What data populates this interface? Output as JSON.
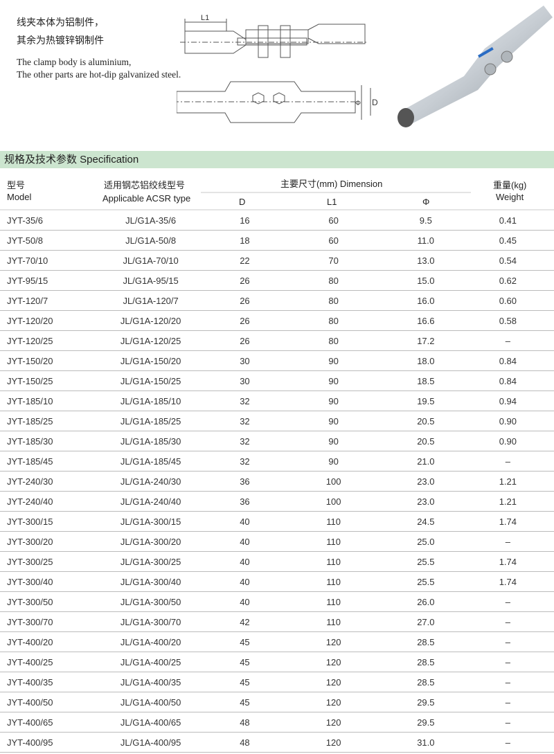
{
  "intro": {
    "zh_line1": "线夹本体为铝制件，",
    "zh_line2": "其余为热镀锌钢制件",
    "en_line1": "The clamp body is aluminium,",
    "en_line2": "The other parts are hot-dip galvanized steel."
  },
  "drawing": {
    "label_l1": "L1",
    "label_phi": "Φ",
    "label_d": "D"
  },
  "section": {
    "title": "规格及技术参数  Specification",
    "color": "#cce5cf"
  },
  "table": {
    "headers": {
      "model_zh": "型号",
      "model_en": "Model",
      "acsr_zh": "适用钢芯铝绞线型号",
      "acsr_en": "Applicable ACSR type",
      "dimension": "主要尺寸(mm)  Dimension",
      "d": "D",
      "l1": "L1",
      "phi": "Φ",
      "weight_zh": "重量(kg)",
      "weight_en": "Weight"
    },
    "rows": [
      [
        "JYT-35/6",
        "JL/G1A-35/6",
        "16",
        "60",
        "9.5",
        "0.41"
      ],
      [
        "JYT-50/8",
        "JL/G1A-50/8",
        "18",
        "60",
        "11.0",
        "0.45"
      ],
      [
        "JYT-70/10",
        "JL/G1A-70/10",
        "22",
        "70",
        "13.0",
        "0.54"
      ],
      [
        "JYT-95/15",
        "JL/G1A-95/15",
        "26",
        "80",
        "15.0",
        "0.62"
      ],
      [
        "JYT-120/7",
        "JL/G1A-120/7",
        "26",
        "80",
        "16.0",
        "0.60"
      ],
      [
        "JYT-120/20",
        "JL/G1A-120/20",
        "26",
        "80",
        "16.6",
        "0.58"
      ],
      [
        "JYT-120/25",
        "JL/G1A-120/25",
        "26",
        "80",
        "17.2",
        "–"
      ],
      [
        "JYT-150/20",
        "JL/G1A-150/20",
        "30",
        "90",
        "18.0",
        "0.84"
      ],
      [
        "JYT-150/25",
        "JL/G1A-150/25",
        "30",
        "90",
        "18.5",
        "0.84"
      ],
      [
        "JYT-185/10",
        "JL/G1A-185/10",
        "32",
        "90",
        "19.5",
        "0.94"
      ],
      [
        "JYT-185/25",
        "JL/G1A-185/25",
        "32",
        "90",
        "20.5",
        "0.90"
      ],
      [
        "JYT-185/30",
        "JL/G1A-185/30",
        "32",
        "90",
        "20.5",
        "0.90"
      ],
      [
        "JYT-185/45",
        "JL/G1A-185/45",
        "32",
        "90",
        "21.0",
        "–"
      ],
      [
        "JYT-240/30",
        "JL/G1A-240/30",
        "36",
        "100",
        "23.0",
        "1.21"
      ],
      [
        "JYT-240/40",
        "JL/G1A-240/40",
        "36",
        "100",
        "23.0",
        "1.21"
      ],
      [
        "JYT-300/15",
        "JL/G1A-300/15",
        "40",
        "110",
        "24.5",
        "1.74"
      ],
      [
        "JYT-300/20",
        "JL/G1A-300/20",
        "40",
        "110",
        "25.0",
        "–"
      ],
      [
        "JYT-300/25",
        "JL/G1A-300/25",
        "40",
        "110",
        "25.5",
        "1.74"
      ],
      [
        "JYT-300/40",
        "JL/G1A-300/40",
        "40",
        "110",
        "25.5",
        "1.74"
      ],
      [
        "JYT-300/50",
        "JL/G1A-300/50",
        "40",
        "110",
        "26.0",
        "–"
      ],
      [
        "JYT-300/70",
        "JL/G1A-300/70",
        "42",
        "110",
        "27.0",
        "–"
      ],
      [
        "JYT-400/20",
        "JL/G1A-400/20",
        "45",
        "120",
        "28.5",
        "–"
      ],
      [
        "JYT-400/25",
        "JL/G1A-400/25",
        "45",
        "120",
        "28.5",
        "–"
      ],
      [
        "JYT-400/35",
        "JL/G1A-400/35",
        "45",
        "120",
        "28.5",
        "–"
      ],
      [
        "JYT-400/50",
        "JL/G1A-400/50",
        "45",
        "120",
        "29.5",
        "–"
      ],
      [
        "JYT-400/65",
        "JL/G1A-400/65",
        "48",
        "120",
        "29.5",
        "–"
      ],
      [
        "JYT-400/95",
        "JL/G1A-400/95",
        "48",
        "120",
        "31.0",
        "–"
      ]
    ]
  }
}
